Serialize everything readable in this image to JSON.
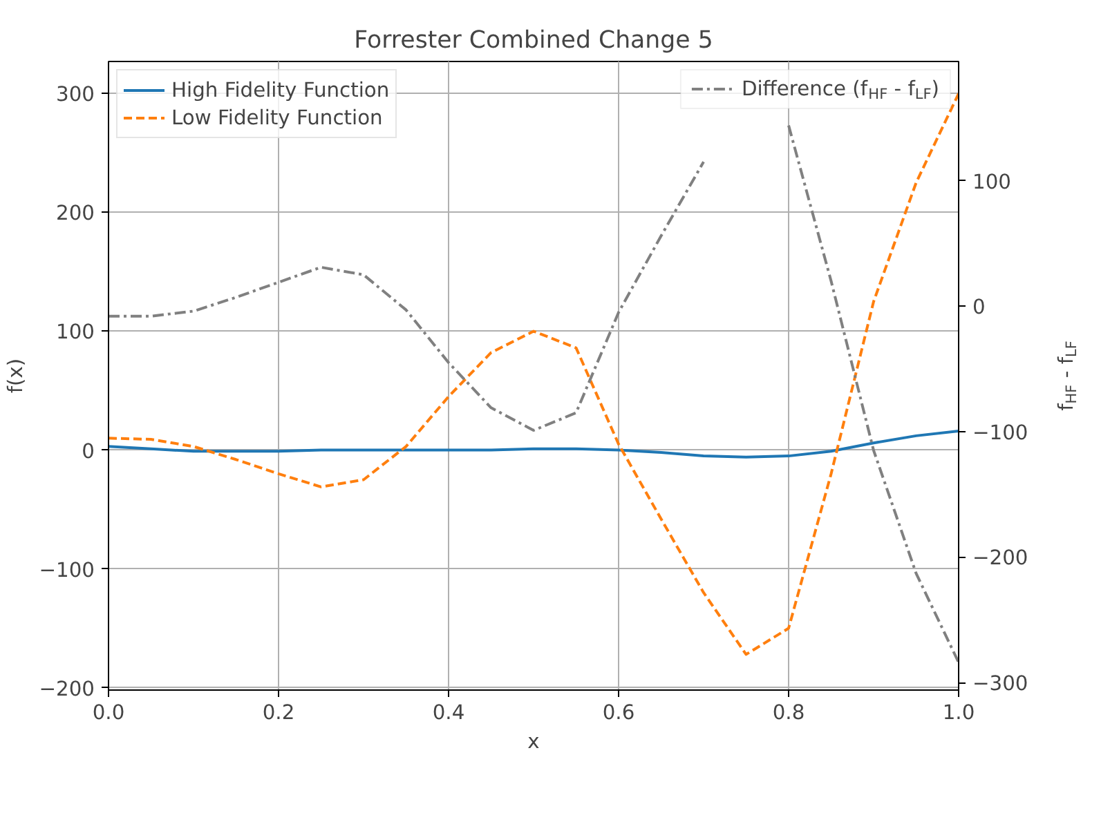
{
  "chart_data": {
    "type": "line",
    "title": "Forrester Combined Change 5",
    "xlabel": "x",
    "ylabel": "f(x)",
    "y2label": "f$_{HF}$ - f$_{LF}$",
    "x": [
      0,
      0.05,
      0.1,
      0.15,
      0.2,
      0.25,
      0.3,
      0.35,
      0.4,
      0.45,
      0.5,
      0.55,
      0.6,
      0.65,
      0.7,
      0.75,
      0.8,
      0.85,
      0.9,
      0.95,
      1.0
    ],
    "series": [
      {
        "name": "High Fidelity Function",
        "color": "#1f77b4",
        "line_style": "solid",
        "values": [
          3,
          1,
          -1,
          -1,
          -1,
          0,
          0,
          0,
          0,
          0,
          1,
          1,
          0,
          -2,
          -5,
          -6,
          -5,
          -1,
          6,
          12,
          16
        ]
      },
      {
        "name": "Low Fidelity Function",
        "color": "#ff7f0e",
        "line_style": "dashed",
        "values": [
          10,
          9,
          3,
          -8,
          -20,
          -31,
          -25,
          3,
          45,
          82,
          100,
          86,
          5,
          -58,
          -120,
          -172,
          -150,
          -20,
          125,
          225,
          300
        ]
      },
      {
        "name": "Difference (f$_{HF}$ - f$_{LF}$)",
        "color": "#808080",
        "line_style": "dashdot",
        "axis": "y2",
        "values": [
          -8,
          -8,
          -4,
          7,
          19,
          31,
          25,
          -3,
          -45,
          -81,
          -99,
          -85,
          -5,
          56,
          115,
          null,
          144,
          20,
          -115,
          -213,
          -284
        ]
      }
    ],
    "xlim": [
      0,
      1
    ],
    "xticks": [
      {
        "value": 0,
        "label": "0.0"
      },
      0.2,
      0.4,
      0.6,
      0.8,
      {
        "value": 1,
        "label": "1.0"
      }
    ],
    "ylim": [
      -202,
      327
    ],
    "yticks": [
      -200,
      -100,
      0,
      100,
      200,
      300
    ],
    "y2lim": [
      -306,
      195
    ],
    "y2ticks": [
      -300,
      -200,
      -100,
      0,
      100
    ],
    "grid": true,
    "legend": "top left"
  }
}
